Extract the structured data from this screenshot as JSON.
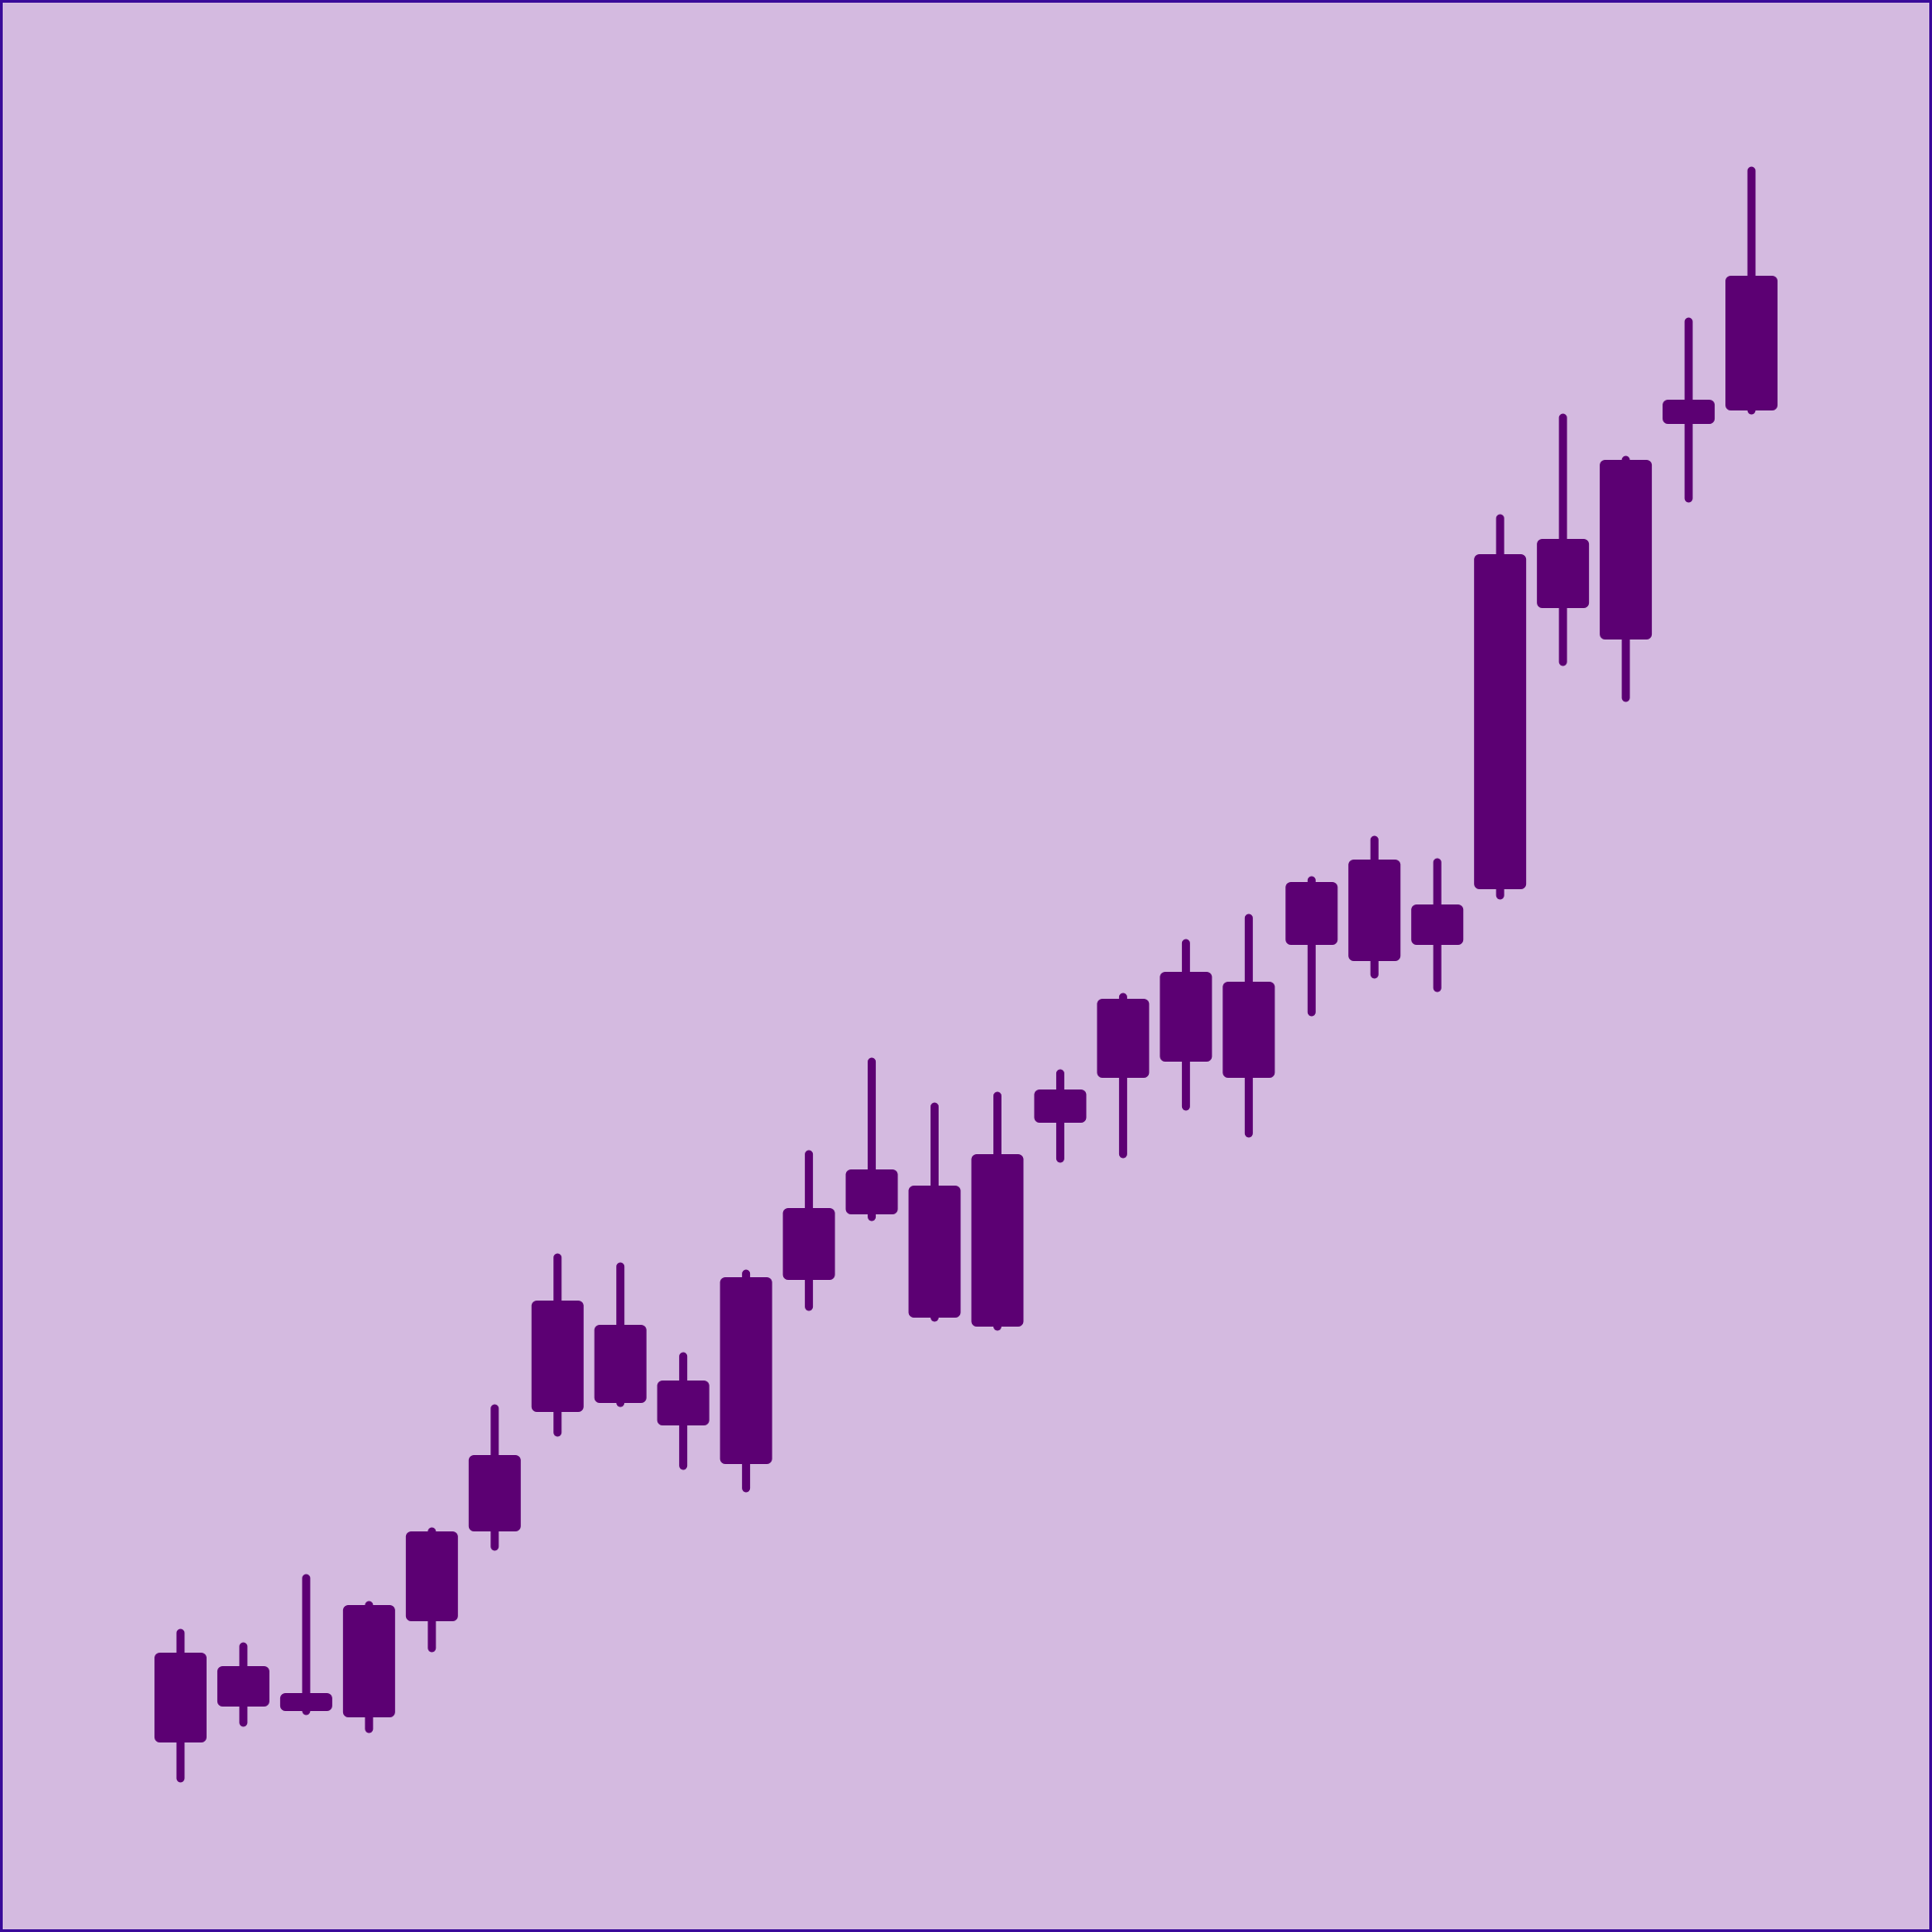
{
  "chart_data": {
    "type": "candlestick",
    "color": "#5c0073",
    "background": "#d4bae0",
    "ylim": [
      0,
      215.1
    ],
    "open": [
      21.1,
      25.1,
      24.6,
      23.9,
      34.6,
      44.6,
      57.9,
      58.9,
      56.4,
      52.1,
      72.6,
      79.9,
      68.4,
      67.4,
      90.1,
      95.1,
      96.9,
      95.1,
      109.9,
      108.1,
      109.9,
      116.1,
      147.4,
      143.9,
      167.9,
      169.4
    ],
    "high": [
      33.3,
      31.8,
      39.4,
      36.4,
      44.6,
      58.3,
      75.1,
      74.1,
      64.1,
      73.3,
      86.6,
      96.9,
      91.9,
      93.1,
      95.6,
      104.1,
      110.1,
      112.9,
      117.1,
      121.6,
      119.1,
      157.4,
      168.6,
      163.9,
      179.3,
      196.1
    ],
    "low": [
      17.1,
      23.3,
      24.6,
      22.6,
      31.6,
      42.9,
      55.6,
      58.9,
      51.9,
      49.4,
      69.6,
      79.6,
      68.4,
      67.4,
      86.1,
      86.6,
      91.9,
      88.9,
      102.4,
      106.6,
      105.1,
      115.4,
      141.4,
      137.4,
      159.6,
      169.4
    ],
    "close": [
      31.1,
      29.6,
      26.6,
      36.4,
      44.6,
      53.1,
      70.3,
      67.6,
      61.4,
      72.9,
      80.6,
      84.9,
      83.1,
      86.6,
      93.8,
      103.9,
      106.9,
      105.8,
      116.9,
      119.4,
      114.4,
      153.4,
      155.1,
      163.9,
      170.6,
      184.4
    ]
  }
}
